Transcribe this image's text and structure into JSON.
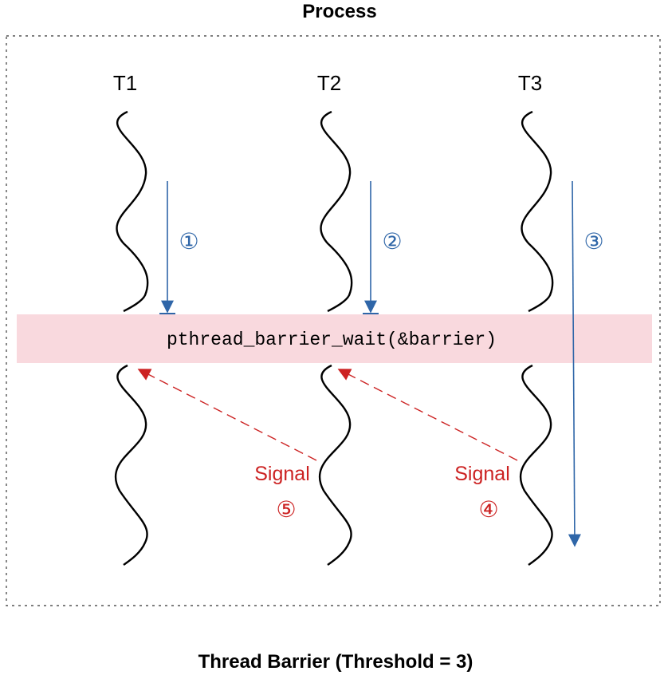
{
  "diagram": {
    "title": "Process",
    "caption": "Thread Barrier (Threshold = 3)",
    "barrier_call": "pthread_barrier_wait(&barrier)",
    "threads": [
      {
        "label": "T1",
        "step": "①"
      },
      {
        "label": "T2",
        "step": "②"
      },
      {
        "label": "T3",
        "step": "③"
      }
    ],
    "signals": [
      {
        "label": "Signal",
        "step": "⑤"
      },
      {
        "label": "Signal",
        "step": "④"
      }
    ],
    "colors": {
      "arrive_arrow": "#2f66a8",
      "signal_arrow": "#cc2222",
      "barrier_band": "#f9d9de",
      "process_border": "#555555"
    }
  }
}
